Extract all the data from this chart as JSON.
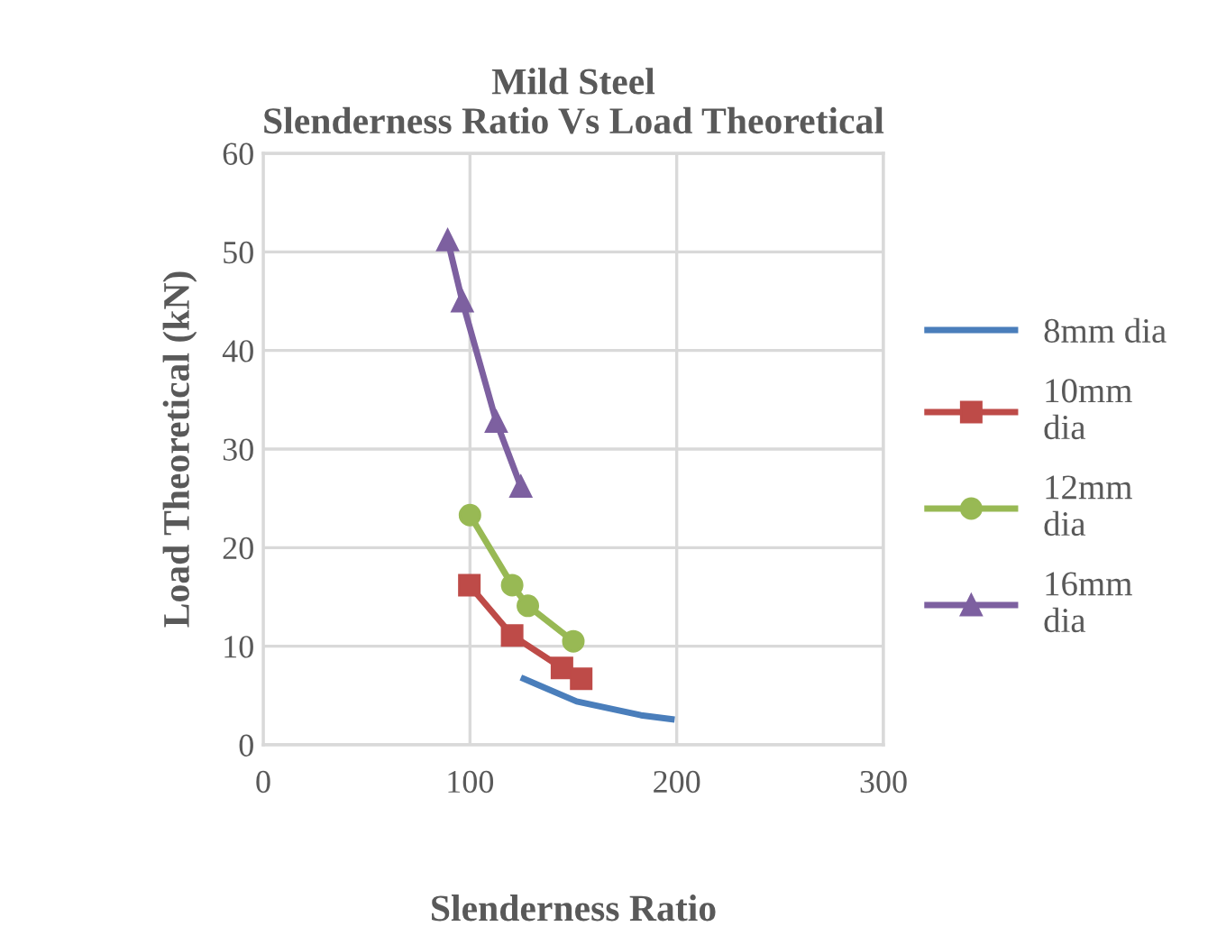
{
  "chart_data": {
    "type": "line",
    "title": "Mild Steel\nSlenderness Ratio Vs Load Theoretical",
    "xlabel": "Slenderness Ratio",
    "ylabel": "Load Theoretical (kN)",
    "xlim": [
      0,
      300
    ],
    "xticks": [
      0,
      100,
      200,
      300
    ],
    "ylim": [
      0,
      60
    ],
    "yticks": [
      0,
      10,
      20,
      30,
      40,
      50,
      60
    ],
    "grid": true,
    "legend": "right",
    "series": [
      {
        "name": "8mm dia",
        "color": "#4a7ebb",
        "marker": "none",
        "x": [
          126,
          151.6,
          182.7,
          197.5
        ],
        "values": [
          6.7,
          4.4,
          3.0,
          2.6
        ]
      },
      {
        "name": "10mm\ndia",
        "color": "#be4b48",
        "marker": "square",
        "x": [
          99.7,
          120.4,
          144.5,
          153.8
        ],
        "values": [
          16.2,
          11.1,
          7.8,
          6.7
        ]
      },
      {
        "name": "12mm\ndia",
        "color": "#98b954",
        "marker": "circle",
        "x": [
          100,
          120.4,
          128,
          150
        ],
        "values": [
          23.3,
          16.2,
          14.1,
          10.5
        ]
      },
      {
        "name": "16mm\ndia",
        "color": "#7d60a0",
        "marker": "triangle",
        "x": [
          89.2,
          96.3,
          112.7,
          124.6
        ],
        "values": [
          51.2,
          45.0,
          32.8,
          26.2
        ]
      }
    ]
  }
}
